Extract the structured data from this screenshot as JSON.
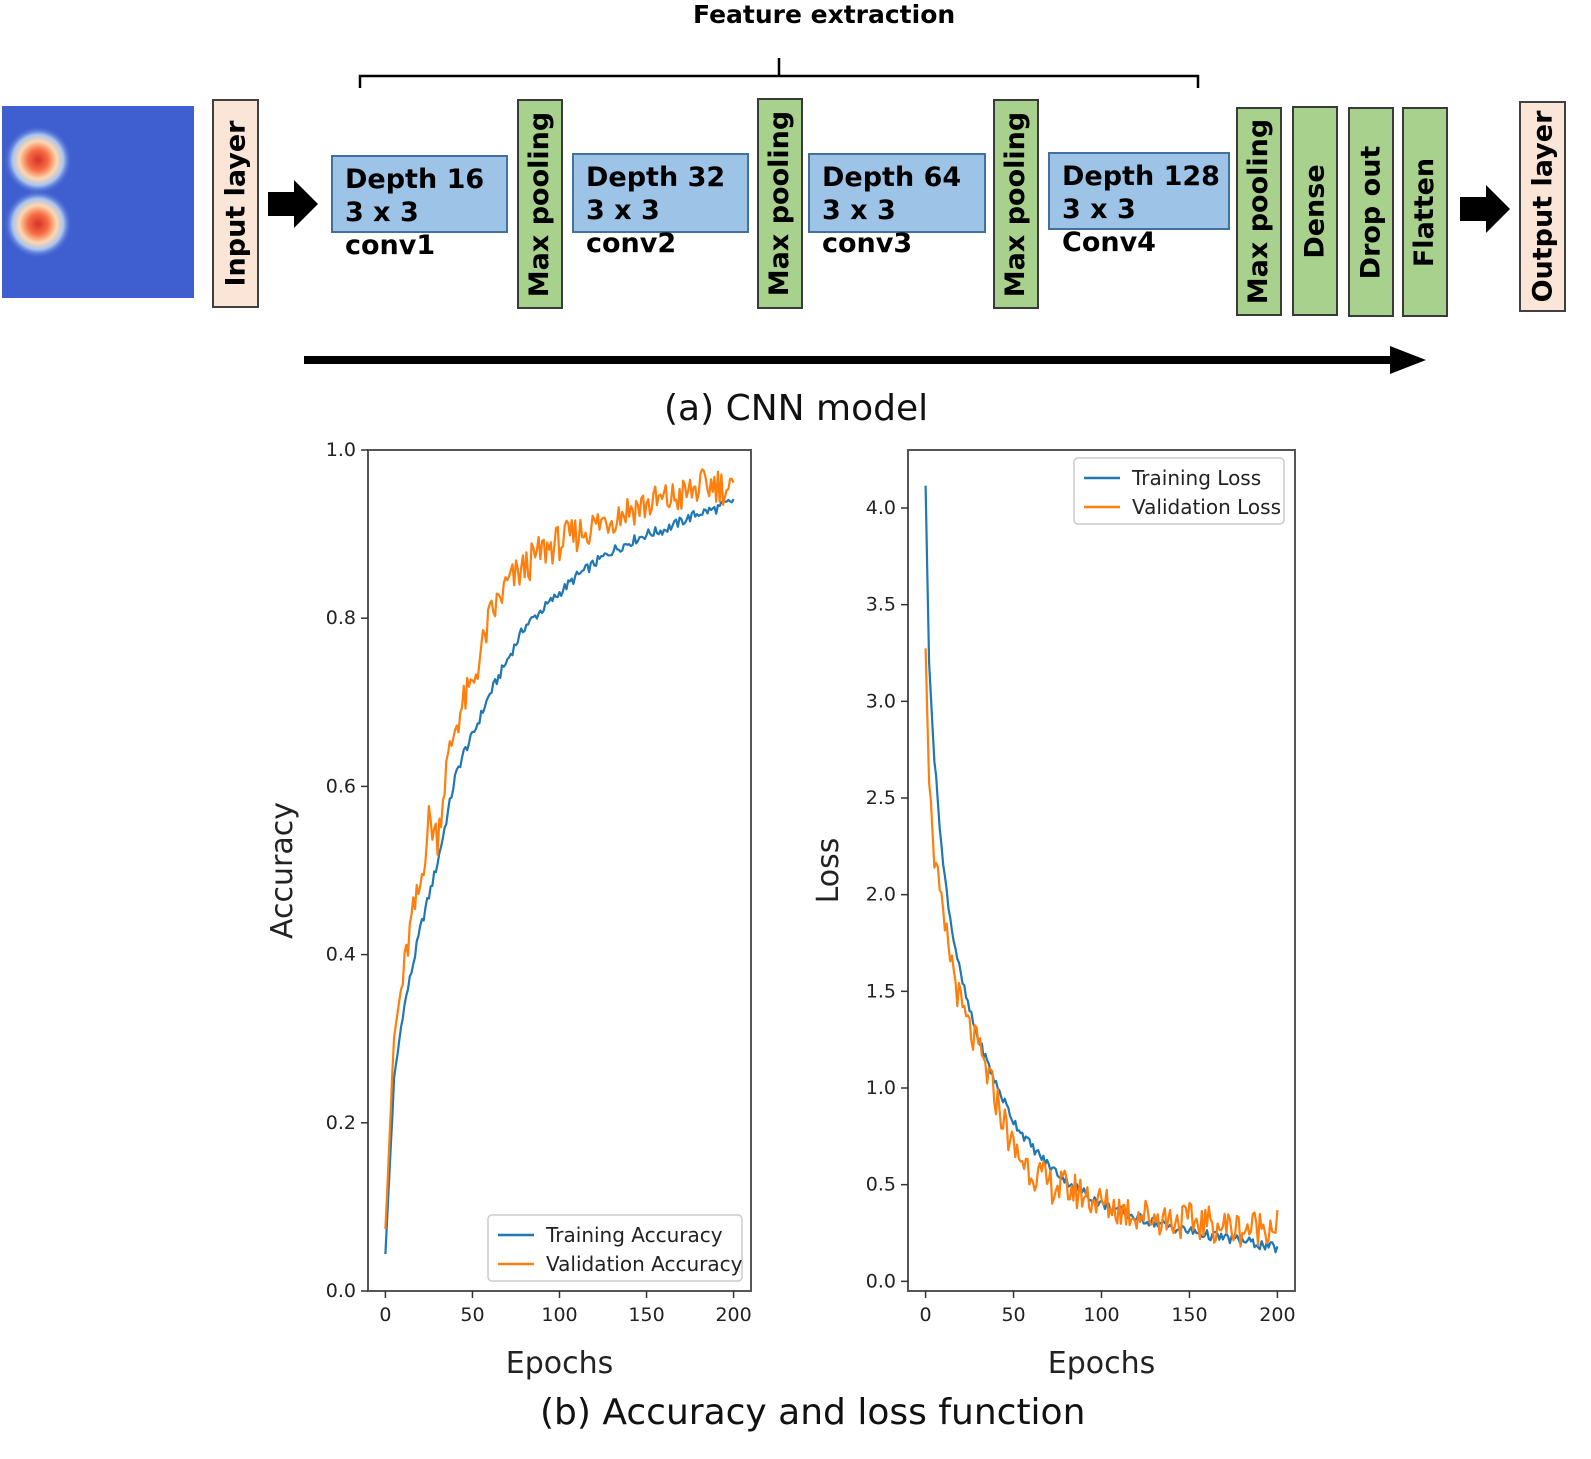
{
  "diagram": {
    "title": "Feature extraction",
    "caption_a": "(a) CNN model",
    "caption_b": "(b) Accuracy and loss function",
    "input_label": "Input layer",
    "output_label": "Output layer",
    "conv_blocks": [
      {
        "line1": "Depth 16",
        "line2": "3 x 3 conv1"
      },
      {
        "line1": "Depth 32",
        "line2": "3 x 3 conv2"
      },
      {
        "line1": "Depth 64",
        "line2": "3 x 3 conv3"
      },
      {
        "line1": "Depth 128",
        "line2": "3 x 3 Conv4"
      }
    ],
    "pooling_label": "Max pooling",
    "head_layers": [
      "Max pooling",
      "Dense",
      "Drop out",
      "Flatten"
    ],
    "colors": {
      "conv": "#9dc3e6",
      "layer": "#a9d18e",
      "io": "#fbe5d6",
      "heatmap": "#3f5fd0"
    }
  },
  "chart_data": [
    {
      "type": "line",
      "name": "accuracy",
      "xlabel": "Epochs",
      "ylabel": "Accuracy",
      "xlim": [
        -10,
        210
      ],
      "ylim": [
        0.0,
        1.0
      ],
      "xticks": [
        "0",
        "50",
        "100",
        "150",
        "200"
      ],
      "yticks": [
        "0.0",
        "0.2",
        "0.4",
        "0.6",
        "0.8",
        "1.0"
      ],
      "legend_position": "bottom-right",
      "series": [
        {
          "name": "Training Accuracy",
          "color": "#1f77b4",
          "x": [
            0,
            5,
            10,
            15,
            20,
            25,
            30,
            35,
            40,
            45,
            50,
            60,
            70,
            80,
            90,
            100,
            110,
            120,
            130,
            140,
            150,
            160,
            170,
            180,
            190,
            200
          ],
          "y": [
            0.045,
            0.25,
            0.33,
            0.38,
            0.43,
            0.47,
            0.51,
            0.56,
            0.61,
            0.64,
            0.66,
            0.71,
            0.75,
            0.79,
            0.81,
            0.83,
            0.85,
            0.865,
            0.88,
            0.89,
            0.9,
            0.905,
            0.915,
            0.925,
            0.93,
            0.94
          ]
        },
        {
          "name": "Validation Accuracy",
          "color": "#ff7f0e",
          "x": [
            0,
            5,
            10,
            15,
            20,
            25,
            30,
            35,
            40,
            45,
            50,
            60,
            70,
            80,
            90,
            100,
            110,
            120,
            130,
            140,
            150,
            160,
            170,
            180,
            190,
            200
          ],
          "y": [
            0.08,
            0.3,
            0.37,
            0.44,
            0.48,
            0.56,
            0.54,
            0.62,
            0.67,
            0.7,
            0.72,
            0.8,
            0.84,
            0.86,
            0.88,
            0.89,
            0.9,
            0.91,
            0.92,
            0.93,
            0.935,
            0.94,
            0.945,
            0.955,
            0.96,
            0.95
          ]
        }
      ]
    },
    {
      "type": "line",
      "name": "loss",
      "xlabel": "Epochs",
      "ylabel": "Loss",
      "xlim": [
        -10,
        210
      ],
      "ylim": [
        -0.05,
        4.3
      ],
      "xticks": [
        "0",
        "50",
        "100",
        "150",
        "200"
      ],
      "yticks": [
        "0.0",
        "0.5",
        "1.0",
        "1.5",
        "2.0",
        "2.5",
        "3.0",
        "3.5",
        "4.0"
      ],
      "legend_position": "top-right",
      "series": [
        {
          "name": "Training Loss",
          "color": "#1f77b4",
          "x": [
            0,
            2,
            5,
            10,
            15,
            20,
            25,
            30,
            40,
            50,
            60,
            70,
            80,
            90,
            100,
            120,
            140,
            160,
            180,
            200
          ],
          "y": [
            4.12,
            3.2,
            2.7,
            2.15,
            1.82,
            1.58,
            1.4,
            1.25,
            1.02,
            0.83,
            0.7,
            0.6,
            0.52,
            0.46,
            0.4,
            0.33,
            0.28,
            0.24,
            0.21,
            0.17
          ]
        },
        {
          "name": "Validation Loss",
          "color": "#ff7f0e",
          "x": [
            0,
            2,
            5,
            10,
            15,
            20,
            25,
            30,
            40,
            50,
            60,
            70,
            80,
            90,
            100,
            120,
            140,
            160,
            180,
            200
          ],
          "y": [
            3.3,
            2.6,
            2.2,
            1.85,
            1.65,
            1.42,
            1.3,
            1.2,
            0.95,
            0.68,
            0.58,
            0.5,
            0.48,
            0.45,
            0.4,
            0.35,
            0.32,
            0.3,
            0.27,
            0.3
          ]
        }
      ]
    }
  ]
}
